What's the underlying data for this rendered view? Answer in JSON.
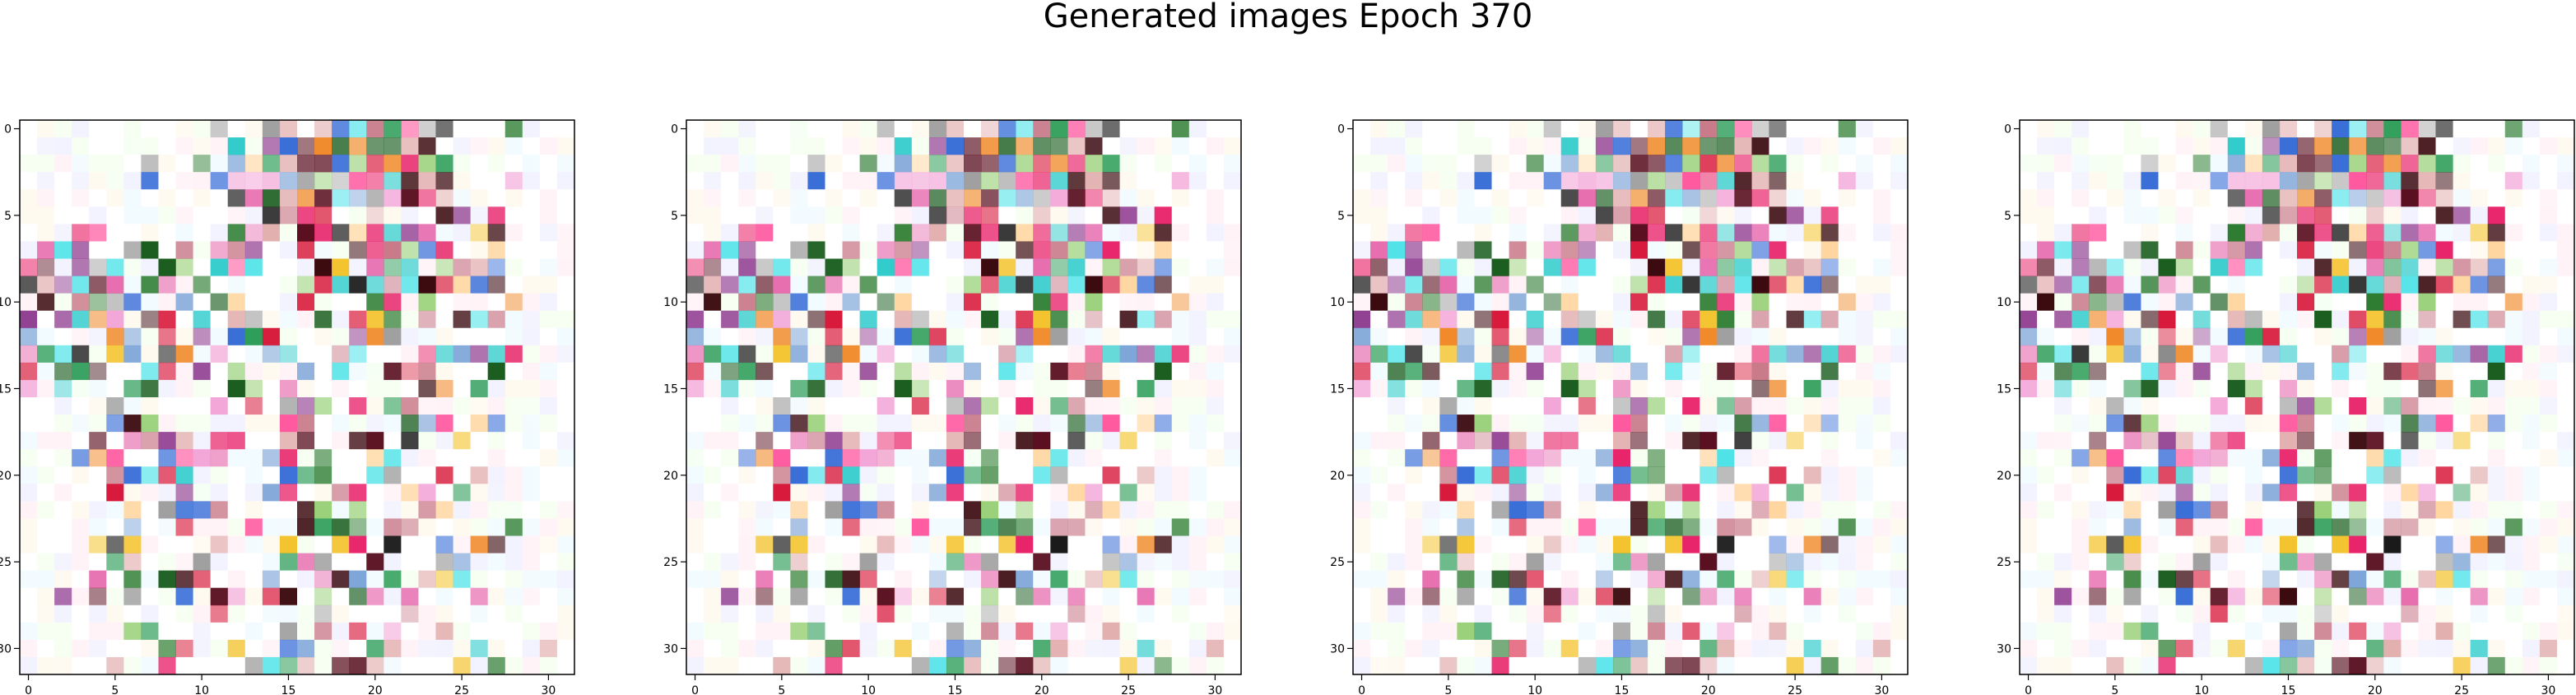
{
  "figure": {
    "title": "Generated images Epoch 370"
  },
  "chart_data": [
    {
      "type": "heatmap",
      "grid": [
        32,
        32
      ],
      "xticks": [
        "0",
        "5",
        "10",
        "15",
        "20",
        "25",
        "30"
      ],
      "yticks": [
        "0",
        "5",
        "10",
        "15",
        "20",
        "25",
        "30"
      ],
      "xlim": [
        -0.5,
        31.5
      ],
      "ylim": [
        31.5,
        -0.5
      ],
      "seed": 1,
      "variant": 0
    },
    {
      "type": "heatmap",
      "grid": [
        32,
        32
      ],
      "xticks": [
        "0",
        "5",
        "10",
        "15",
        "20",
        "25",
        "30"
      ],
      "yticks": [
        "0",
        "5",
        "10",
        "15",
        "20",
        "25",
        "30"
      ],
      "xlim": [
        -0.5,
        31.5
      ],
      "ylim": [
        31.5,
        -0.5
      ],
      "seed": 1,
      "variant": 1
    },
    {
      "type": "heatmap",
      "grid": [
        32,
        32
      ],
      "xticks": [
        "0",
        "5",
        "10",
        "15",
        "20",
        "25",
        "30"
      ],
      "yticks": [
        "0",
        "5",
        "10",
        "15",
        "20",
        "25",
        "30"
      ],
      "xlim": [
        -0.5,
        31.5
      ],
      "ylim": [
        31.5,
        -0.5
      ],
      "seed": 1,
      "variant": 2
    },
    {
      "type": "heatmap",
      "grid": [
        32,
        32
      ],
      "xticks": [
        "0",
        "5",
        "10",
        "15",
        "20",
        "25",
        "30"
      ],
      "yticks": [
        "0",
        "5",
        "10",
        "15",
        "20",
        "25",
        "30"
      ],
      "xlim": [
        -0.5,
        31.5
      ],
      "ylim": [
        31.5,
        -0.5
      ],
      "seed": 1,
      "variant": 3
    }
  ]
}
